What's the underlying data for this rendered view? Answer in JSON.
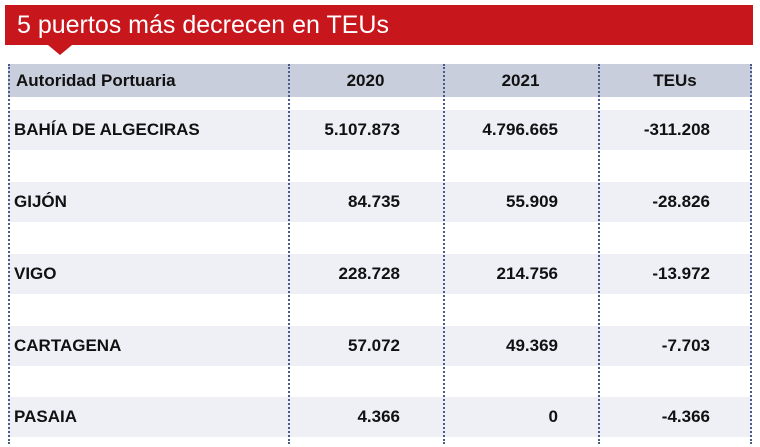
{
  "header": {
    "title": "5 puertos más decrecen en TEUs"
  },
  "table": {
    "columns": [
      "Autoridad Portuaria",
      "2020",
      "2021",
      "TEUs"
    ],
    "rows": [
      [
        "BAHÍA DE ALGECIRAS",
        "5.107.873",
        "4.796.665",
        "-311.208"
      ],
      [
        "GIJÓN",
        "84.735",
        "55.909",
        "-28.826"
      ],
      [
        "VIGO",
        "228.728",
        "214.756",
        "-13.972"
      ],
      [
        "CARTAGENA",
        "57.072",
        "49.369",
        "-7.703"
      ],
      [
        "PASAIA",
        "4.366",
        "0",
        "-4.366"
      ]
    ]
  }
}
